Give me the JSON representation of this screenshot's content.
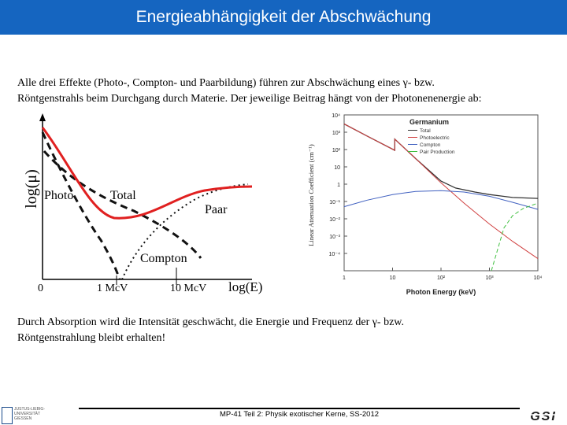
{
  "header": {
    "title": "Energieabhängigkeit der Abschwächung"
  },
  "intro": {
    "line1": "Alle drei Effekte (Photo-, Compton- und Paarbildung) führen zur Abschwächung eines γ- bzw.",
    "line2": "Röntgenstrahls beim Durchgang durch Materie. Der jeweilige Beitrag hängt von der Photonenenergie ab:"
  },
  "sketch": {
    "ylabel": "log(μ)",
    "xlabel": "log(E)",
    "label_photo": "Photo",
    "label_total": "Total",
    "label_paar": "Paar",
    "label_compton": "Compton",
    "tick_0": "0",
    "tick_1mev": "1 McV",
    "tick_10mev": "10 McV",
    "color_total": "#e02020"
  },
  "chart_data": {
    "type": "line",
    "title": "Germanium",
    "xlabel": "Photon Energy (keV)",
    "ylabel": "Linear Attenuation Coefficient (cm⁻¹)",
    "xscale": "log",
    "yscale": "log",
    "xlim": [
      1,
      10000
    ],
    "ylim": [
      1e-05,
      10000
    ],
    "x_ticks": [
      "1",
      "10",
      "10²",
      "10³",
      "10⁴"
    ],
    "y_ticks": [
      "10⁴",
      "10³",
      "10²",
      "10",
      "1",
      "10⁻¹",
      "10⁻²",
      "10⁻³",
      "10⁻⁴"
    ],
    "legend": [
      "Total",
      "Photoelectric",
      "Compton",
      "Pair Production"
    ],
    "series": [
      {
        "name": "Total",
        "color": "#333333",
        "points": [
          [
            1,
            3000
          ],
          [
            3,
            600
          ],
          [
            11.1,
            90
          ],
          [
            11.1,
            400
          ],
          [
            30,
            30
          ],
          [
            100,
            1.5
          ],
          [
            200,
            0.6
          ],
          [
            500,
            0.35
          ],
          [
            1000,
            0.25
          ],
          [
            3000,
            0.17
          ],
          [
            10000,
            0.15
          ]
        ]
      },
      {
        "name": "Photoelectric",
        "color": "#d04040",
        "points": [
          [
            1,
            3000
          ],
          [
            3,
            600
          ],
          [
            11.1,
            90
          ],
          [
            11.1,
            400
          ],
          [
            30,
            30
          ],
          [
            100,
            1.2
          ],
          [
            300,
            0.08
          ],
          [
            1000,
            0.005
          ],
          [
            3000,
            0.0005
          ],
          [
            10000,
            5e-05
          ]
        ]
      },
      {
        "name": "Compton",
        "color": "#4060c0",
        "points": [
          [
            1,
            0.05
          ],
          [
            3,
            0.12
          ],
          [
            10,
            0.25
          ],
          [
            30,
            0.38
          ],
          [
            100,
            0.42
          ],
          [
            300,
            0.35
          ],
          [
            1000,
            0.2
          ],
          [
            3000,
            0.09
          ],
          [
            10000,
            0.035
          ]
        ]
      },
      {
        "name": "Pair Production",
        "color": "#40c040",
        "points": [
          [
            1100,
            1e-05
          ],
          [
            1300,
            5e-05
          ],
          [
            2000,
            0.003
          ],
          [
            3000,
            0.015
          ],
          [
            5000,
            0.04
          ],
          [
            10000,
            0.08
          ]
        ]
      }
    ]
  },
  "outro": {
    "line1": "Durch Absorption wird die Intensität geschwächt, die Energie und Frequenz der γ- bzw.",
    "line2": "Röntgenstrahlung bleibt erhalten!"
  },
  "footer": {
    "text": "MP-41 Teil 2: Physik exotischer Kerne, SS-2012",
    "uni_line1": "JUSTUS-LIEBIG-",
    "uni_line2": "UNIVERSITÄT",
    "uni_line3": "GIESSEN",
    "gsi_logo": "GSI"
  }
}
